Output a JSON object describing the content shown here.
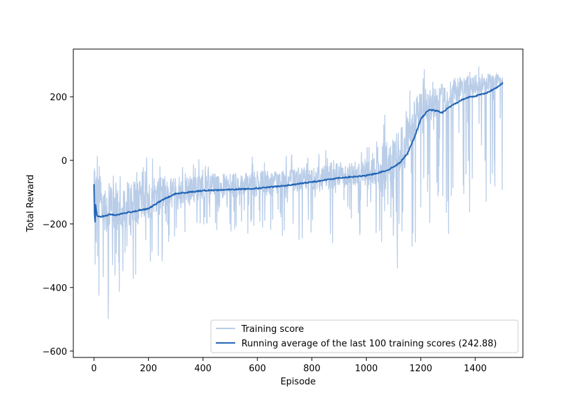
{
  "chart_data": {
    "type": "line",
    "xlabel": "Episode",
    "ylabel": "Total Reward",
    "xlim": [
      -76,
      1575
    ],
    "ylim": [
      -620,
      350
    ],
    "xticks": [
      0,
      200,
      400,
      600,
      800,
      1000,
      1200,
      1400
    ],
    "yticks": [
      -600,
      -400,
      -200,
      0,
      200
    ],
    "x_tick_labels": [
      "0",
      "200",
      "400",
      "600",
      "800",
      "1000",
      "1200",
      "1400"
    ],
    "y_tick_labels": [
      "−600",
      "−400",
      "−200",
      "0",
      "200"
    ],
    "grid": false,
    "legend_position": "lower-right",
    "series": [
      {
        "name": "Training score",
        "color": "#b9cde8",
        "style": "noisy",
        "x": [
          0,
          50,
          100,
          150,
          200,
          250,
          300,
          350,
          400,
          450,
          500,
          550,
          600,
          650,
          700,
          750,
          800,
          850,
          900,
          950,
          1000,
          1050,
          1100,
          1150,
          1200,
          1250,
          1300,
          1350,
          1400,
          1450,
          1500
        ],
        "y": [
          -75,
          -165,
          -150,
          -140,
          -130,
          -115,
          -100,
          -95,
          -90,
          -85,
          -85,
          -80,
          -78,
          -75,
          -70,
          -65,
          -60,
          -55,
          -50,
          -45,
          -40,
          -30,
          -20,
          60,
          160,
          175,
          200,
          220,
          235,
          245,
          250
        ],
        "y_min": [
          -420,
          -570,
          -445,
          -380,
          -320,
          -320,
          -260,
          -250,
          -250,
          -250,
          -250,
          -240,
          -240,
          -240,
          -250,
          -250,
          -260,
          -290,
          -250,
          -240,
          -250,
          -320,
          -340,
          -370,
          -375,
          -310,
          -305,
          -200,
          -265,
          -200,
          -100
        ],
        "y_max": [
          25,
          30,
          15,
          10,
          15,
          15,
          0,
          5,
          10,
          0,
          0,
          10,
          10,
          15,
          15,
          20,
          20,
          40,
          40,
          40,
          70,
          140,
          150,
          250,
          285,
          290,
          300,
          305,
          310,
          305,
          285
        ]
      },
      {
        "name": "Running average of the last 100 training scores (242.88)",
        "color": "#2265b5",
        "style": "smooth",
        "x": [
          0,
          3,
          6,
          9,
          12,
          20,
          40,
          60,
          80,
          100,
          150,
          200,
          250,
          300,
          350,
          400,
          500,
          600,
          700,
          800,
          900,
          950,
          1000,
          1050,
          1080,
          1100,
          1120,
          1150,
          1180,
          1200,
          1230,
          1260,
          1280,
          1300,
          1320,
          1350,
          1380,
          1400,
          1450,
          1480,
          1500
        ],
        "y": [
          -75,
          -220,
          -140,
          -165,
          -175,
          -178,
          -175,
          -170,
          -172,
          -168,
          -160,
          -152,
          -125,
          -105,
          -100,
          -95,
          -92,
          -88,
          -80,
          -68,
          -55,
          -52,
          -48,
          -38,
          -30,
          -20,
          -10,
          20,
          80,
          130,
          160,
          155,
          150,
          165,
          175,
          190,
          200,
          202,
          215,
          230,
          242.88
        ]
      }
    ]
  }
}
